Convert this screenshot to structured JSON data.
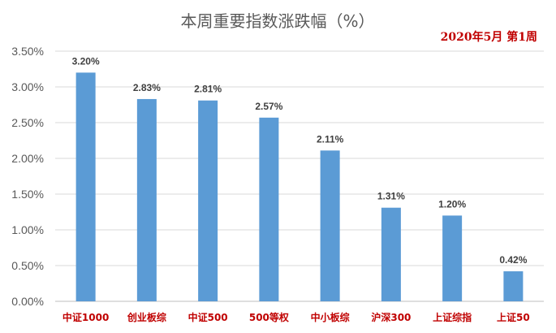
{
  "chart_data": {
    "type": "bar",
    "title": "本周重要指数涨跌幅（%）",
    "subtitle": "2020年5月 第1周",
    "categories": [
      "中证1000",
      "创业板综",
      "中证500",
      "500等权",
      "中小板综",
      "沪深300",
      "上证综指",
      "上证50"
    ],
    "values": [
      3.2,
      2.83,
      2.81,
      2.57,
      2.11,
      1.31,
      1.2,
      0.42
    ],
    "data_labels": [
      "3.20%",
      "2.83%",
      "2.81%",
      "2.57%",
      "2.11%",
      "1.31%",
      "1.20%",
      "0.42%"
    ],
    "yticks": [
      "0.00%",
      "0.50%",
      "1.00%",
      "1.50%",
      "2.00%",
      "2.50%",
      "3.00%",
      "3.50%"
    ],
    "ylim": [
      0,
      3.5
    ],
    "grid": true,
    "xlabel": "",
    "ylabel": "",
    "colors": {
      "bar": "#5b9bd5",
      "category_text": "#c00000",
      "subtitle": "#c00000"
    }
  }
}
